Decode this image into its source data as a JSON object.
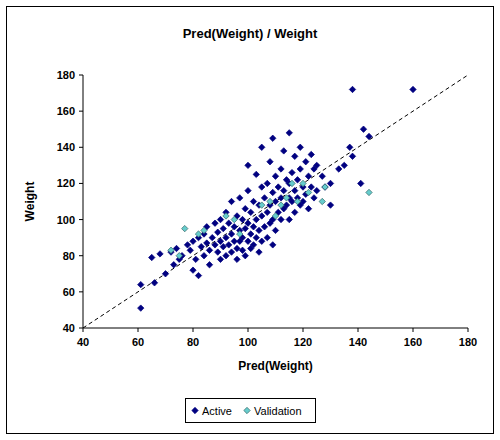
{
  "chart_data": {
    "type": "scatter",
    "title": "Pred(Weight) / Weight",
    "x_label": "Pred(Weight)",
    "y_label": "Weight",
    "xlim": [
      40,
      180
    ],
    "ylim": [
      40,
      180
    ],
    "xticks": [
      40,
      60,
      80,
      100,
      120,
      140,
      160,
      180
    ],
    "yticks": [
      40,
      60,
      80,
      100,
      120,
      140,
      160,
      180
    ],
    "grid": false,
    "legend": "bottom",
    "series": [
      {
        "name": "Active",
        "color": "#000080",
        "marker": "diamond",
        "x": [
          61,
          61,
          65,
          66,
          68,
          70,
          72,
          73,
          74,
          75,
          76,
          78,
          79,
          80,
          80,
          81,
          82,
          82,
          83,
          84,
          84,
          85,
          85,
          86,
          86,
          87,
          88,
          88,
          89,
          89,
          90,
          90,
          90,
          91,
          91,
          92,
          92,
          92,
          93,
          93,
          94,
          94,
          94,
          95,
          95,
          96,
          96,
          96,
          97,
          97,
          97,
          98,
          98,
          98,
          99,
          99,
          99,
          100,
          100,
          100,
          100,
          101,
          101,
          101,
          102,
          102,
          102,
          103,
          103,
          103,
          104,
          104,
          104,
          105,
          105,
          105,
          105,
          106,
          106,
          107,
          107,
          107,
          108,
          108,
          108,
          109,
          109,
          109,
          109,
          110,
          110,
          110,
          111,
          111,
          112,
          112,
          112,
          113,
          113,
          113,
          114,
          114,
          115,
          115,
          115,
          115,
          116,
          116,
          117,
          117,
          117,
          118,
          118,
          119,
          119,
          119,
          120,
          120,
          121,
          121,
          122,
          122,
          123,
          123,
          124,
          124,
          125,
          125,
          127,
          128,
          130,
          130,
          133,
          135,
          137,
          138,
          138,
          142,
          144,
          160,
          141
        ],
        "values": [
          64,
          51,
          79,
          65,
          81,
          70,
          82,
          75,
          84,
          78,
          80,
          86,
          83,
          88,
          72,
          78,
          90,
          69,
          85,
          92,
          80,
          96,
          87,
          83,
          75,
          90,
          98,
          86,
          82,
          93,
          100,
          88,
          78,
          85,
          95,
          104,
          90,
          80,
          98,
          86,
          110,
          92,
          82,
          88,
          96,
          102,
          84,
          78,
          112,
          94,
          88,
          100,
          90,
          83,
          106,
          95,
          80,
          130,
          116,
          98,
          88,
          104,
          92,
          84,
          110,
          96,
          86,
          125,
          100,
          90,
          108,
          94,
          82,
          140,
          118,
          102,
          88,
          112,
          96,
          120,
          104,
          90,
          132,
          108,
          98,
          145,
          115,
          100,
          86,
          124,
          110,
          94,
          118,
          104,
          128,
          112,
          100,
          138,
          116,
          106,
          122,
          108,
          148,
          120,
          112,
          100,
          126,
          110,
          135,
          116,
          104,
          122,
          112,
          140,
          128,
          108,
          118,
          110,
          132,
          114,
          124,
          106,
          136,
          118,
          128,
          112,
          130,
          116,
          124,
          118,
          120,
          108,
          128,
          130,
          140,
          135,
          172,
          150,
          146,
          172,
          120
        ]
      },
      {
        "name": "Validation",
        "color": "#66cccc",
        "marker": "diamond",
        "x": [
          72,
          75,
          77,
          82,
          84,
          92,
          95,
          97,
          105,
          108,
          110,
          112,
          114,
          116,
          118,
          120,
          127,
          128,
          144,
          122
        ],
        "values": [
          83,
          80,
          95,
          92,
          94,
          102,
          100,
          92,
          108,
          110,
          102,
          108,
          112,
          120,
          110,
          120,
          110,
          118,
          115,
          115
        ]
      }
    ]
  }
}
